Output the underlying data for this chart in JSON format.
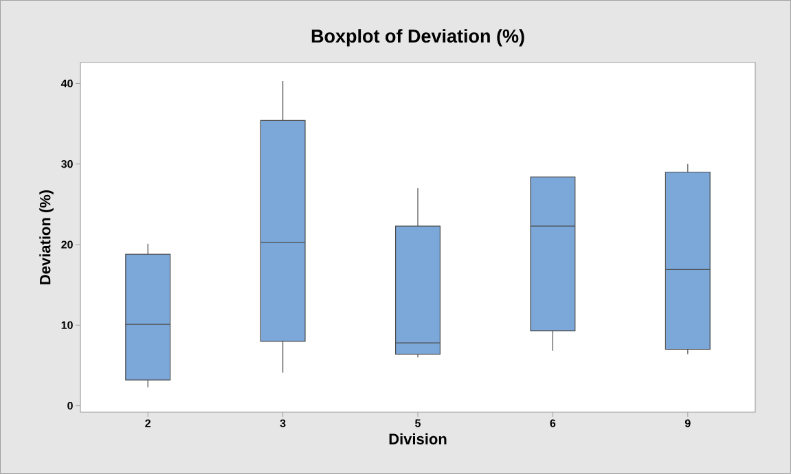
{
  "chart_data": {
    "type": "box",
    "title": "Boxplot of Deviation (%)",
    "xlabel": "Division",
    "ylabel": "Deviation (%)",
    "categories": [
      "2",
      "3",
      "5",
      "6",
      "9"
    ],
    "boxes": [
      {
        "low": 2.3,
        "q1": 3.2,
        "median": 10.1,
        "q3": 18.8,
        "high": 20.1
      },
      {
        "low": 4.1,
        "q1": 8.0,
        "median": 20.3,
        "q3": 35.4,
        "high": 40.3
      },
      {
        "low": 6.0,
        "q1": 6.4,
        "median": 7.8,
        "q3": 22.3,
        "high": 27.0
      },
      {
        "low": 6.8,
        "q1": 9.3,
        "median": 22.3,
        "q3": 28.4,
        "high": 28.4
      },
      {
        "low": 6.4,
        "q1": 7.0,
        "median": 16.9,
        "q3": 29.0,
        "high": 30.0
      }
    ],
    "color": "#7ba7d9",
    "ylim": [
      -0.8,
      42.6
    ],
    "yticks": [
      0,
      10,
      20,
      30,
      40
    ]
  }
}
